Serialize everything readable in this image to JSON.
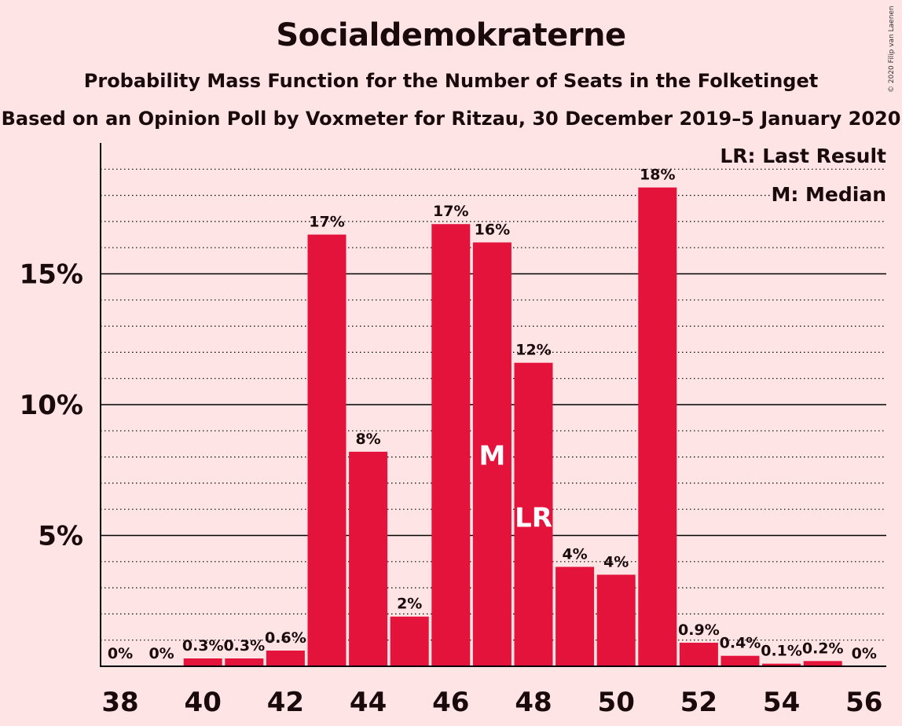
{
  "title": "Socialdemokraterne",
  "subtitle": "Probability Mass Function for the Number of Seats in the Folketinget",
  "subtitle2": "Based on an Opinion Poll by Voxmeter for Ritzau, 30 December 2019–5 January 2020",
  "copyright": "© 2020 Filip van Laenen",
  "legend": {
    "lr": "LR: Last Result",
    "m": "M: Median"
  },
  "colors": {
    "background": "#FFE4E6",
    "bar": "#E3133B",
    "text": "#1a0a0c"
  },
  "chart_data": {
    "type": "bar",
    "xlabel": "",
    "ylabel": "",
    "categories": [
      38,
      39,
      40,
      41,
      42,
      43,
      44,
      45,
      46,
      47,
      48,
      49,
      50,
      51,
      52,
      53,
      54,
      55,
      56
    ],
    "values": [
      0,
      0,
      0.3,
      0.3,
      0.6,
      16.5,
      8.2,
      1.9,
      16.9,
      16.2,
      11.6,
      3.8,
      3.5,
      18.3,
      0.9,
      0.4,
      0.1,
      0.2,
      0
    ],
    "labels": [
      "0%",
      "0%",
      "0.3%",
      "0.3%",
      "0.6%",
      "17%",
      "8%",
      "2%",
      "17%",
      "16%",
      "12%",
      "4%",
      "4%",
      "18%",
      "0.9%",
      "0.4%",
      "0.1%",
      "0.2%",
      "0%"
    ],
    "x_ticks": [
      38,
      40,
      42,
      44,
      46,
      48,
      50,
      52,
      54,
      56
    ],
    "y_ticks": [
      5,
      10,
      15
    ],
    "y_tick_labels": [
      "5%",
      "10%",
      "15%"
    ],
    "ylim": [
      0,
      20
    ],
    "minor_gridlines": true,
    "median_seat": 47,
    "median_marker": "M",
    "last_result_seat": 48,
    "last_result_marker": "LR",
    "legend_position": "top-right"
  }
}
